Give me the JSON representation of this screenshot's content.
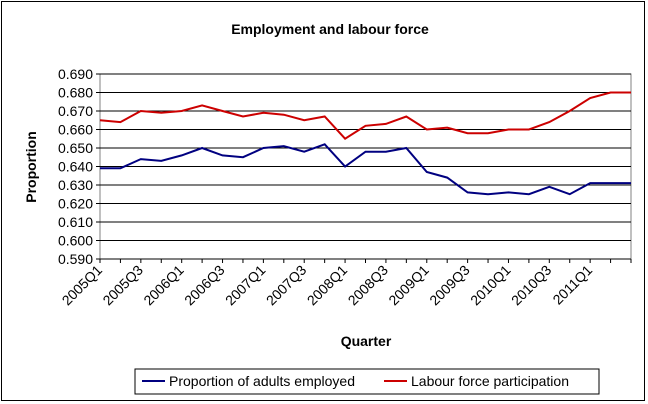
{
  "chart_data": {
    "type": "line",
    "title": "Employment and labour force",
    "xlabel": "Quarter",
    "ylabel": "Proportion",
    "ylim": [
      0.59,
      0.69
    ],
    "yticks": [
      "0.590",
      "0.600",
      "0.610",
      "0.620",
      "0.630",
      "0.640",
      "0.650",
      "0.660",
      "0.670",
      "0.680",
      "0.690"
    ],
    "x": [
      "2005Q1",
      "2005Q2",
      "2005Q3",
      "2005Q4",
      "2006Q1",
      "2006Q2",
      "2006Q3",
      "2006Q4",
      "2007Q1",
      "2007Q2",
      "2007Q3",
      "2007Q4",
      "2008Q1",
      "2008Q2",
      "2008Q3",
      "2008Q4",
      "2009Q1",
      "2009Q2",
      "2009Q3",
      "2009Q4",
      "2010Q1",
      "2010Q2",
      "2010Q3",
      "2010Q4",
      "2011Q1",
      "2011Q2",
      "2011Q3"
    ],
    "x_tick_labels": [
      "2005Q1",
      "2005Q3",
      "2006Q1",
      "2006Q3",
      "2007Q1",
      "2007Q3",
      "2008Q1",
      "2008Q3",
      "2009Q1",
      "2009Q3",
      "2010Q1",
      "2010Q3",
      "2011Q1"
    ],
    "grid": true,
    "legend_position": "bottom",
    "series": [
      {
        "name": "Proportion of adults employed",
        "color": "#000080",
        "values": [
          0.639,
          0.639,
          0.644,
          0.643,
          0.646,
          0.65,
          0.646,
          0.645,
          0.65,
          0.651,
          0.648,
          0.652,
          0.64,
          0.648,
          0.648,
          0.65,
          0.637,
          0.634,
          0.626,
          0.625,
          0.626,
          0.625,
          0.629,
          0.625,
          0.631,
          0.631,
          0.631
        ]
      },
      {
        "name": "Labour force participation",
        "color": "#cc0000",
        "values": [
          0.665,
          0.664,
          0.67,
          0.669,
          0.67,
          0.673,
          0.67,
          0.667,
          0.669,
          0.668,
          0.665,
          0.667,
          0.655,
          0.662,
          0.663,
          0.667,
          0.66,
          0.661,
          0.658,
          0.658,
          0.66,
          0.66,
          0.664,
          0.67,
          0.677,
          0.68,
          0.68
        ]
      }
    ]
  }
}
